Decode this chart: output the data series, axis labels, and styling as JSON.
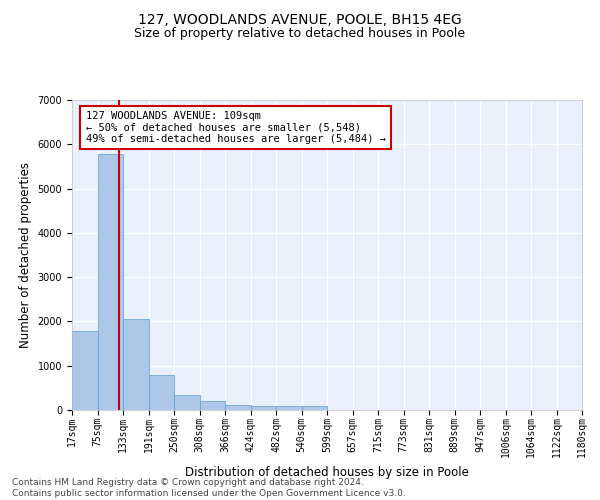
{
  "title": "127, WOODLANDS AVENUE, POOLE, BH15 4EG",
  "subtitle": "Size of property relative to detached houses in Poole",
  "xlabel": "Distribution of detached houses by size in Poole",
  "ylabel": "Number of detached properties",
  "bar_values": [
    1780,
    5780,
    2060,
    800,
    340,
    200,
    120,
    100,
    100,
    90,
    0,
    0,
    0,
    0,
    0,
    0,
    0,
    0,
    0,
    0
  ],
  "bar_color": "#aec6e8",
  "bar_edge_color": "#5a9fd4",
  "x_labels": [
    "17sqm",
    "75sqm",
    "133sqm",
    "191sqm",
    "250sqm",
    "308sqm",
    "366sqm",
    "424sqm",
    "482sqm",
    "540sqm",
    "599sqm",
    "657sqm",
    "715sqm",
    "773sqm",
    "831sqm",
    "889sqm",
    "947sqm",
    "1006sqm",
    "1064sqm",
    "1122sqm",
    "1180sqm"
  ],
  "ylim": [
    0,
    7000
  ],
  "yticks": [
    0,
    1000,
    2000,
    3000,
    4000,
    5000,
    6000,
    7000
  ],
  "red_line_x": 1.33,
  "annotation_text": "127 WOODLANDS AVENUE: 109sqm\n← 50% of detached houses are smaller (5,548)\n49% of semi-detached houses are larger (5,484) →",
  "annotation_box_color": "#ffffff",
  "annotation_box_edge": "#cc0000",
  "footer_line1": "Contains HM Land Registry data © Crown copyright and database right 2024.",
  "footer_line2": "Contains public sector information licensed under the Open Government Licence v3.0.",
  "background_color": "#eaf0fb",
  "grid_color": "#ffffff",
  "title_fontsize": 10,
  "subtitle_fontsize": 9,
  "axis_label_fontsize": 8.5,
  "tick_fontsize": 7,
  "annotation_fontsize": 7.5,
  "footer_fontsize": 6.5
}
